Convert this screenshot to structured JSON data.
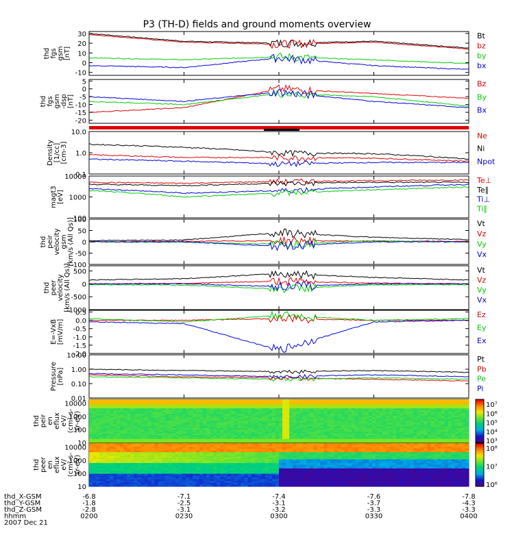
{
  "title": "P3 (TH-D) fields and ground moments overview",
  "colors": {
    "black": "#000000",
    "red": "#e00000",
    "green": "#00cc00",
    "blue": "#0000e0"
  },
  "chart_data": [
    {
      "type": "line",
      "panel": "fgs-gsm",
      "ylabel": [
        "thd",
        "fgs",
        "gsm",
        "[nT]"
      ],
      "yticks": [
        "30",
        "20",
        "10",
        "0",
        "-10"
      ],
      "ylim": [
        -13,
        32
      ],
      "scale": "linear",
      "x": [
        "0200",
        "0230",
        "0300",
        "0330",
        "0400"
      ],
      "series": [
        {
          "name": "Bt",
          "color": "black",
          "values": [
            30,
            22,
            20,
            22,
            15
          ]
        },
        {
          "name": "bz",
          "color": "red",
          "values": [
            29,
            21,
            19,
            21,
            14
          ]
        },
        {
          "name": "by",
          "color": "green",
          "values": [
            5,
            3,
            6,
            3,
            -1
          ]
        },
        {
          "name": "bx",
          "color": "blue",
          "values": [
            -3,
            -5,
            5,
            -3,
            -7
          ]
        }
      ]
    },
    {
      "type": "line",
      "panel": "fgs-gsm-Bxyz",
      "ylabel": [
        "thd",
        "fgs",
        "gsm",
        "-dsp",
        "[nT]"
      ],
      "yticks": [
        "5",
        "0",
        "-5",
        "-10",
        "-15",
        "-20"
      ],
      "ylim": [
        -22,
        6
      ],
      "scale": "linear",
      "x": [
        "0200",
        "0230",
        "0300",
        "0330",
        "0400"
      ],
      "series": [
        {
          "name": "Bz",
          "color": "red",
          "values": [
            -15,
            -12,
            0,
            -3,
            -6
          ]
        },
        {
          "name": "By",
          "color": "green",
          "values": [
            -8,
            -10,
            -3,
            -5,
            -11
          ]
        },
        {
          "name": "Bx",
          "color": "blue",
          "values": [
            -5,
            -8,
            -2,
            -8,
            -12
          ]
        }
      ]
    },
    {
      "type": "line",
      "panel": "density",
      "ylabel": [
        "Density",
        "[1/cc]",
        "[cm-3]"
      ],
      "yticks": [
        "10.0",
        "1.0",
        "0.1"
      ],
      "ylim": [
        0.1,
        10
      ],
      "scale": "log",
      "x": [
        "0200",
        "0230",
        "0300",
        "0330",
        "0400"
      ],
      "series": [
        {
          "name": "Ne",
          "color": "red",
          "values": [
            0.8,
            0.6,
            0.6,
            0.55,
            0.4
          ]
        },
        {
          "name": "Ni",
          "color": "black",
          "values": [
            2.5,
            1.8,
            1.0,
            0.9,
            0.5
          ]
        },
        {
          "name": "Npot",
          "color": "blue",
          "values": [
            0.5,
            0.4,
            0.3,
            0.35,
            0.35
          ]
        }
      ]
    },
    {
      "type": "line",
      "panel": "temperature",
      "ylabel": [
        "magt3",
        "[eV]"
      ],
      "yticks": [
        "10000",
        "1000",
        "100"
      ],
      "ylim": [
        100,
        10000
      ],
      "scale": "log",
      "x": [
        "0200",
        "0230",
        "0300",
        "0330",
        "0400"
      ],
      "series": [
        {
          "name": "Te⊥",
          "color": "red",
          "values": [
            5000,
            4500,
            5500,
            6000,
            6500
          ]
        },
        {
          "name": "Te∥",
          "color": "black",
          "values": [
            4000,
            3500,
            4500,
            5000,
            5000
          ]
        },
        {
          "name": "Ti⊥",
          "color": "blue",
          "values": [
            2500,
            1500,
            2000,
            3000,
            4000
          ]
        },
        {
          "name": "Ti∥",
          "color": "green",
          "values": [
            2000,
            1000,
            1500,
            2200,
            3000
          ]
        }
      ]
    },
    {
      "type": "line",
      "panel": "peir-velocity",
      "ylabel": [
        "thd",
        "peir",
        "velocity",
        "gsm",
        "[km/s (All Qs)]"
      ],
      "yticks": [
        "100",
        "50",
        "0",
        "-50",
        "-100"
      ],
      "ylim": [
        -100,
        100
      ],
      "scale": "linear",
      "x": [
        "0200",
        "0230",
        "0300",
        "0330",
        "0400"
      ],
      "series": [
        {
          "name": "Vt",
          "color": "black",
          "values": [
            5,
            8,
            40,
            20,
            10
          ]
        },
        {
          "name": "Vz",
          "color": "red",
          "values": [
            0,
            2,
            5,
            3,
            2
          ]
        },
        {
          "name": "Vy",
          "color": "green",
          "values": [
            0,
            -2,
            -10,
            5,
            -2
          ]
        },
        {
          "name": "Vx",
          "color": "blue",
          "values": [
            0,
            0,
            -20,
            0,
            0
          ]
        }
      ]
    },
    {
      "type": "line",
      "panel": "peer-velocity",
      "ylabel": [
        "thd",
        "peer",
        "velocity",
        "[km/s (All Qs)]"
      ],
      "yticks": [
        "500",
        "0",
        "-500",
        "-1000"
      ],
      "ylim": [
        -1000,
        700
      ],
      "scale": "linear",
      "x": [
        "0200",
        "0230",
        "0300",
        "0330",
        "0400"
      ],
      "series": [
        {
          "name": "Vt",
          "color": "black",
          "values": [
            150,
            200,
            400,
            250,
            150
          ]
        },
        {
          "name": "Vz",
          "color": "red",
          "values": [
            0,
            20,
            100,
            30,
            0
          ]
        },
        {
          "name": "Vy",
          "color": "green",
          "values": [
            -30,
            -50,
            -200,
            -40,
            -30
          ]
        },
        {
          "name": "Vx",
          "color": "blue",
          "values": [
            0,
            0,
            -100,
            0,
            0
          ]
        }
      ]
    },
    {
      "type": "line",
      "panel": "efield",
      "ylabel": [
        "E=-VxB",
        "[mV/m]"
      ],
      "yticks": [
        "0.5",
        "0.0",
        "-0.5",
        "-1.0",
        "-1.5",
        "-2.0"
      ],
      "ylim": [
        -2.0,
        0.6
      ],
      "scale": "linear",
      "x": [
        "0200",
        "0230",
        "0300",
        "0330",
        "0400"
      ],
      "series": [
        {
          "name": "Ez",
          "color": "red",
          "values": [
            0,
            0,
            0.1,
            0,
            0
          ]
        },
        {
          "name": "Ey",
          "color": "green",
          "values": [
            0.1,
            -0.1,
            0.3,
            0,
            0.1
          ]
        },
        {
          "name": "Ex",
          "color": "blue",
          "values": [
            -0.1,
            -0.2,
            -1.8,
            -0.1,
            0
          ]
        }
      ]
    },
    {
      "type": "line",
      "panel": "pressure",
      "ylabel": [
        "Pressure",
        "[nPa]"
      ],
      "yticks": [
        "10.00",
        "1.00",
        "0.10",
        "0.01"
      ],
      "ylim": [
        0.01,
        10
      ],
      "scale": "log",
      "x": [
        "0200",
        "0230",
        "0300",
        "0330",
        "0400"
      ],
      "series": [
        {
          "name": "Pt",
          "color": "black",
          "values": [
            1.0,
            0.8,
            0.7,
            0.8,
            0.6
          ]
        },
        {
          "name": "Pb",
          "color": "red",
          "values": [
            0.4,
            0.3,
            0.25,
            0.2,
            0.15
          ]
        },
        {
          "name": "Pe",
          "color": "green",
          "values": [
            0.3,
            0.25,
            0.2,
            0.25,
            0.2
          ]
        },
        {
          "name": "Pi",
          "color": "blue",
          "values": [
            0.5,
            0.4,
            0.3,
            0.4,
            0.3
          ]
        }
      ]
    },
    {
      "type": "heatmap",
      "panel": "peir-eflux",
      "ylabel": [
        "thd",
        "peir",
        "en",
        "eflux",
        "eV/",
        "(cm²-s-",
        "sr-eV)"
      ],
      "yticks": [
        "10000",
        "1000",
        "100",
        "10"
      ],
      "ylim": [
        10,
        20000
      ],
      "scale": "log",
      "colorbar_ticks": [
        "10⁷",
        "10⁶",
        "10⁵",
        "10⁴",
        "10³"
      ]
    },
    {
      "type": "heatmap",
      "panel": "peer-eflux",
      "ylabel": [
        "thd",
        "peer",
        "en",
        "eflux",
        "eV/",
        "(cm²-s-",
        "sr-eV)"
      ],
      "yticks": [
        "10000",
        "1000",
        "100",
        "10"
      ],
      "ylim": [
        10,
        20000
      ],
      "scale": "log",
      "colorbar_ticks": [
        "10⁸",
        "10⁷",
        "10⁶"
      ]
    }
  ],
  "x_axis": {
    "row_labels": [
      "thd_X-GSM",
      "thd_Y-GSM",
      "thd_Z-GSM",
      "hhmm",
      "2007 Dec 21"
    ],
    "columns": [
      [
        "-6.8",
        "-1.8",
        "-2.8",
        "0200"
      ],
      [
        "-7.1",
        "-2.5",
        "-3.1",
        "0230"
      ],
      [
        "-7.4",
        "-3.1",
        "-3.2",
        "0300"
      ],
      [
        "-7.6",
        "-3.7",
        "-3.3",
        "0330"
      ],
      [
        "-7.8",
        "-4.3",
        "-3.3",
        "0400"
      ]
    ]
  }
}
